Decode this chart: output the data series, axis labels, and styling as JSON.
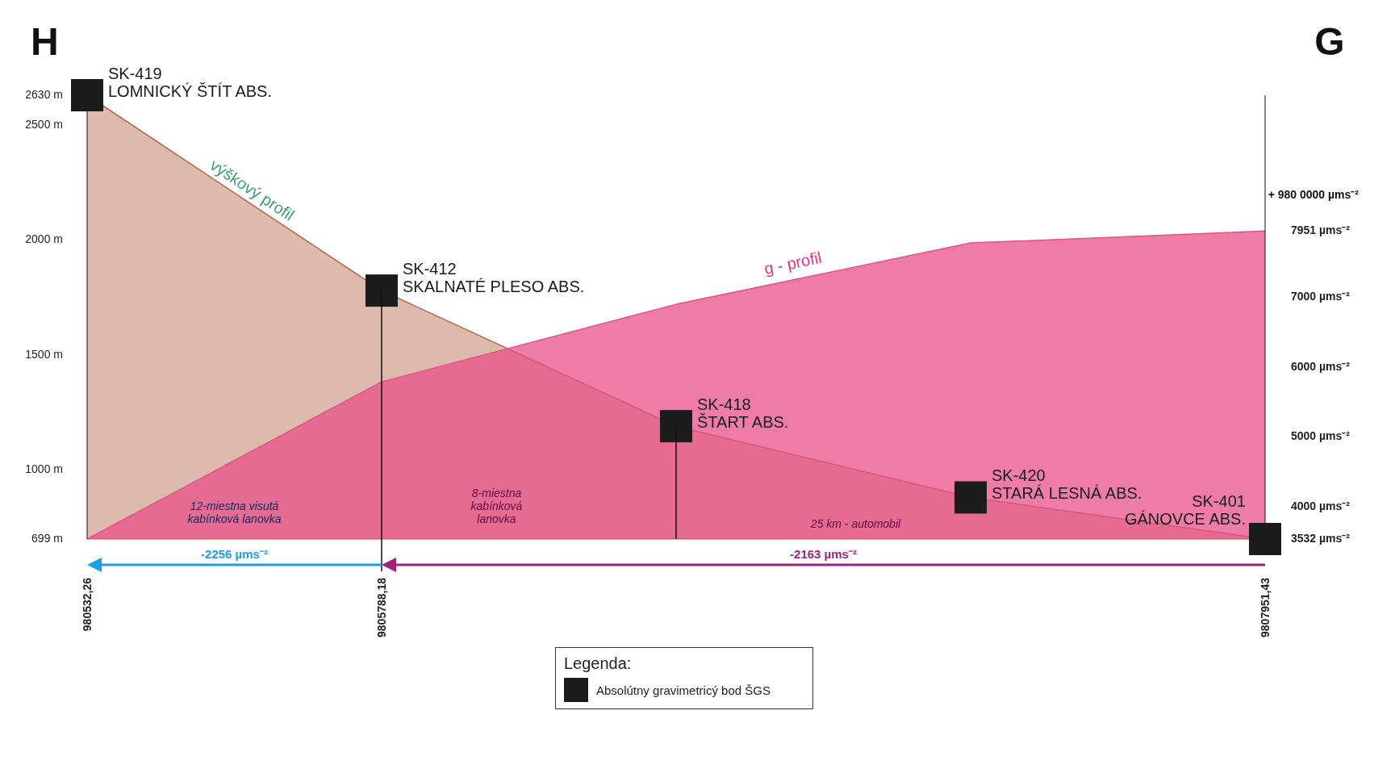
{
  "chart_data": {
    "type": "area",
    "ylabel": "H",
    "y2label": "G",
    "categories": [
      "980532,26",
      "9805788,18",
      null,
      null,
      "9807951,43"
    ],
    "series": [
      {
        "name": "výškový profil",
        "color": "#b5654a",
        "values": [
          2630,
          1780,
          1190,
          880,
          699
        ]
      },
      {
        "name": "g - profil",
        "axis": "y2",
        "color": "#e8508a",
        "values": [
          3532,
          5788,
          6900,
          7780,
          7951
        ]
      },
      {
        "name": "Absolútny gravimetricý bod ŠGS",
        "type": "scatter",
        "marker": "square",
        "color": "#1c1c1c",
        "values": [
          2630,
          1780,
          1190,
          880,
          699
        ]
      }
    ],
    "ylim": [
      699,
      2630
    ],
    "yticks": [
      {
        "value": 699,
        "label": "699 m"
      },
      {
        "value": 1000,
        "label": "1000 m"
      },
      {
        "value": 1500,
        "label": "1500 m"
      },
      {
        "value": 2000,
        "label": "2000 m"
      },
      {
        "value": 2500,
        "label": "2500 m"
      },
      {
        "value": 2630,
        "label": "2630 m"
      }
    ],
    "y2lim": [
      3532,
      9900
    ],
    "y2ticks": [
      {
        "value": 3532,
        "label": "3532 µms⁻²"
      },
      {
        "value": 4000,
        "label": "4000 µms⁻²"
      },
      {
        "value": 5000,
        "label": "5000 µms⁻²"
      },
      {
        "value": 6000,
        "label": "6000 µms⁻²"
      },
      {
        "value": 7000,
        "label": "7000 µms⁻²"
      },
      {
        "value": 7951,
        "label": "7951 µms⁻²"
      }
    ],
    "legend": "bottom",
    "legend_title": "Legenda:",
    "annotations": [
      "SK-419\nLOMNICKÝ ŠTÍT ABS.",
      "SK-412\nSKALNATÉ PLESO ABS.",
      "SK-418\nŠTART ABS.",
      "SK-420\nSTARÁ LESNÁ ABS.",
      "SK-401\nGÁNOVCE ABS.",
      "12-miestna visutá\nkabínková lanovka",
      "8-miestna\nkabínková\nlanovka",
      "25 km - automobil",
      "-2256 µms⁻²",
      "-2163 µms⁻²",
      "+ 980 0000 µms⁻²"
    ]
  }
}
